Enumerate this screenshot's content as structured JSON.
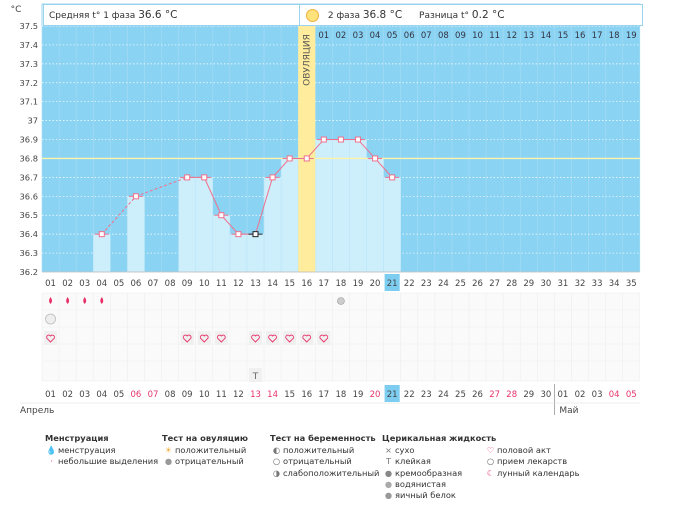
{
  "header": {
    "unit": "°C",
    "phase1_label": "Средняя t° 1 фаза",
    "phase1_value": "36.6 °C",
    "phase2_label": "2 фаза",
    "phase2_value": "36.8 °C",
    "diff_label": "Разница t°",
    "diff_value": "0.2 °C"
  },
  "colors": {
    "sky": "#8ad3f3",
    "bar": "#cdeefb",
    "ovulation": "#ffec9c",
    "coverline": "#fff3a8",
    "series": "#f0708c",
    "today": "#7dcdf0",
    "weekend": "#e8336a"
  },
  "chart_data": {
    "type": "line",
    "title": "",
    "ylabel": "°C",
    "ylim": [
      36.2,
      37.5
    ],
    "y_ticks": [
      "36.2",
      "36.3",
      "36.4",
      "36.5",
      "36.6",
      "36.7",
      "36.8",
      "36.9",
      "37",
      "37.1",
      "37.2",
      "37.3",
      "37.4",
      "37.5"
    ],
    "cycle_days": [
      "01",
      "02",
      "03",
      "04",
      "05",
      "06",
      "07",
      "08",
      "09",
      "10",
      "11",
      "12",
      "13",
      "14",
      "15",
      "16",
      "17",
      "18",
      "19",
      "20",
      "21",
      "22",
      "23",
      "24",
      "25",
      "26",
      "27",
      "28",
      "29",
      "30",
      "31",
      "32",
      "33",
      "34",
      "35"
    ],
    "top_days": [
      "01",
      "02",
      "03",
      "04",
      "05",
      "06",
      "07",
      "08",
      "09",
      "10",
      "11",
      "12",
      "13",
      "14",
      "15",
      "16",
      "17",
      "18",
      "19"
    ],
    "dates": [
      "01",
      "02",
      "03",
      "04",
      "05",
      "06",
      "07",
      "08",
      "09",
      "10",
      "11",
      "12",
      "13",
      "14",
      "15",
      "16",
      "17",
      "18",
      "19",
      "20",
      "21",
      "22",
      "23",
      "24",
      "25",
      "26",
      "27",
      "28",
      "29",
      "30",
      "01",
      "02",
      "03",
      "04",
      "05"
    ],
    "weekend_indices": [
      5,
      6,
      12,
      13,
      19,
      26,
      27,
      33,
      34
    ],
    "current_index": 20,
    "months": [
      "Апрель",
      "Май"
    ],
    "ovulation_label": "ОВУЛЯЦИЯ",
    "ovulation_day": 16,
    "coverline": 36.8,
    "temperatures": [
      {
        "day": 4,
        "value": 36.4
      },
      {
        "day": 6,
        "value": 36.6
      },
      {
        "day": 9,
        "value": 36.7
      },
      {
        "day": 10,
        "value": 36.7
      },
      {
        "day": 11,
        "value": 36.5
      },
      {
        "day": 12,
        "value": 36.4
      },
      {
        "day": 13,
        "value": 36.4
      },
      {
        "day": 14,
        "value": 36.7
      },
      {
        "day": 15,
        "value": 36.8
      },
      {
        "day": 16,
        "value": 36.8
      },
      {
        "day": 17,
        "value": 36.9
      },
      {
        "day": 18,
        "value": 36.9
      },
      {
        "day": 19,
        "value": 36.9
      },
      {
        "day": 20,
        "value": 36.8
      },
      {
        "day": 21,
        "value": 36.7
      }
    ],
    "dashed_segments": [
      [
        4,
        6
      ],
      [
        6,
        9
      ]
    ],
    "marked_day": 13
  },
  "symbols": {
    "menstruation_days": [
      1,
      2,
      3,
      4
    ],
    "ovulation_test_negative_days": [
      18
    ],
    "pregnancy_test_days": [
      1
    ],
    "intercourse_days": [
      1,
      9,
      10,
      11,
      13,
      14,
      15,
      16,
      17
    ],
    "fluid_sticky_days": [
      13
    ]
  },
  "legend": {
    "groups": [
      {
        "title": "Менструация",
        "items": [
          {
            "icon": "drop-icon",
            "label": "менструация"
          },
          {
            "icon": "small-drop-icon",
            "label": "небольшие выделения"
          }
        ]
      },
      {
        "title": "Тест на овуляцию",
        "items": [
          {
            "icon": "sun-positive-icon",
            "label": "положительный"
          },
          {
            "icon": "circle-negative-icon",
            "label": "отрицательный"
          }
        ]
      },
      {
        "title": "Тест на беременность",
        "items": [
          {
            "icon": "pregnancy-positive-icon",
            "label": "положительный"
          },
          {
            "icon": "pregnancy-negative-icon",
            "label": "отрицательный"
          },
          {
            "icon": "pregnancy-weak-icon",
            "label": "слабоположительный"
          }
        ]
      },
      {
        "title": "Церикальная жидкость",
        "items": [
          {
            "icon": "cross-icon",
            "label": "сухо"
          },
          {
            "icon": "t-icon",
            "label": "клейкая"
          },
          {
            "icon": "cream-icon",
            "label": "кремообразная"
          },
          {
            "icon": "watery-icon",
            "label": "водянистая"
          },
          {
            "icon": "eggwhite-icon",
            "label": "яичный белок"
          }
        ]
      },
      {
        "title": "",
        "items": [
          {
            "icon": "heart-icon",
            "label": "половой акт"
          },
          {
            "icon": "pill-icon",
            "label": "прием лекарств"
          },
          {
            "icon": "moon-icon",
            "label": "лунный календарь"
          }
        ]
      }
    ]
  }
}
